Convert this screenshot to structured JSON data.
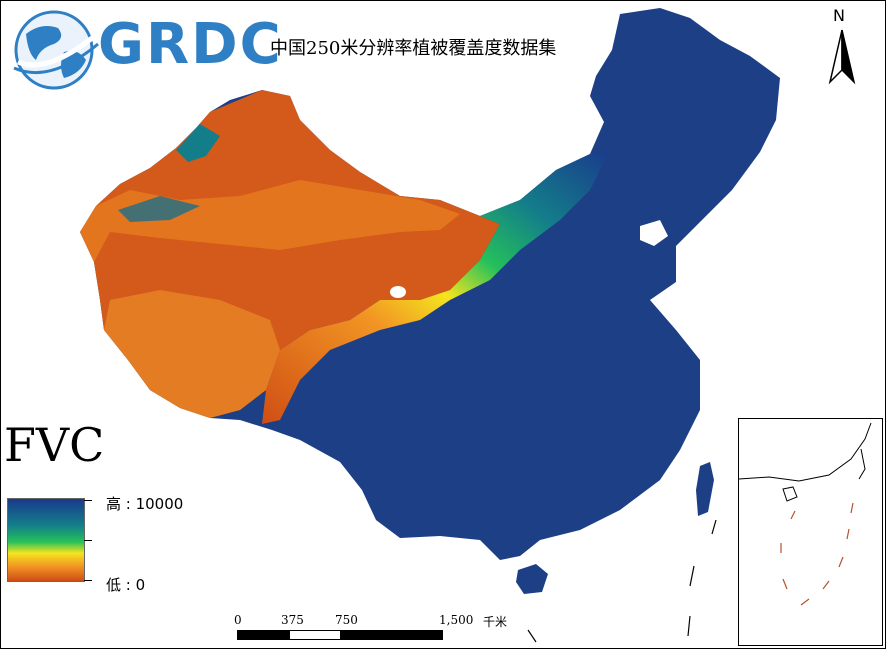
{
  "logo": {
    "text": "GRDC"
  },
  "map": {
    "title": "中国250米分辨率植被覆盖度数据集",
    "north_label": "N",
    "colors": {
      "high": "#1a3a8c",
      "mid_high": "#137e8a",
      "mid": "#25c05b",
      "yellow": "#f4e51e",
      "orange": "#f29524",
      "low": "#cf4e14"
    }
  },
  "legend": {
    "title": "FVC",
    "high_label": "高 : 10000",
    "low_label": "低 : 0"
  },
  "scale_bar": {
    "ticks": [
      "0",
      "375",
      "750",
      "1,500"
    ],
    "unit": "千米"
  }
}
